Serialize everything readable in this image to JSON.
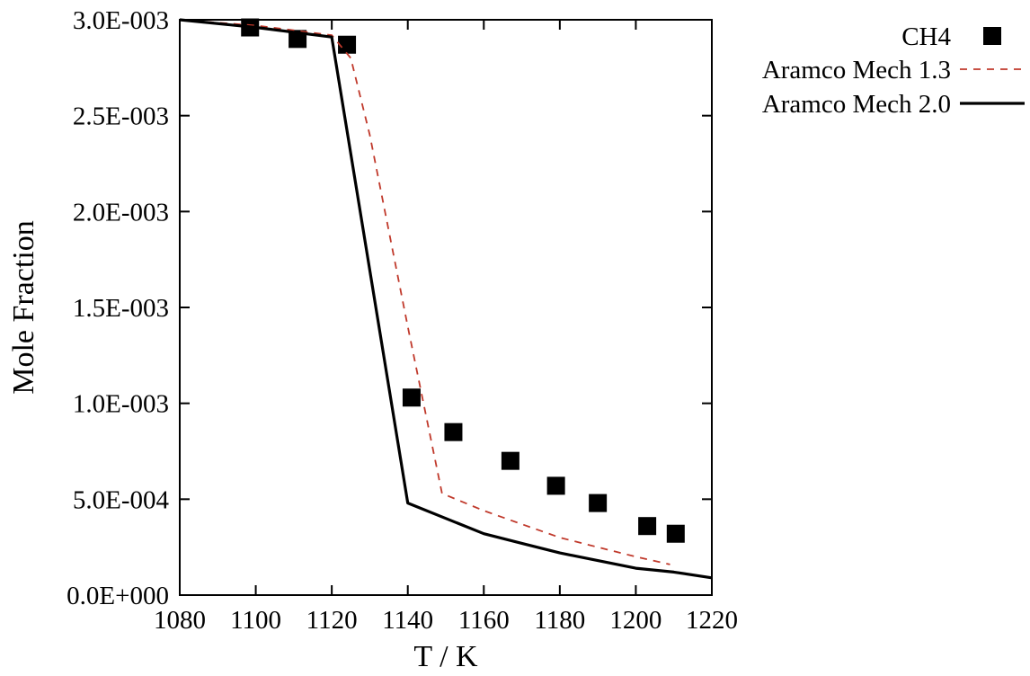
{
  "chart_data": {
    "type": "line",
    "title": "",
    "xlabel": "T / K",
    "ylabel": "Mole Fraction",
    "xlim": [
      1080,
      1220
    ],
    "ylim": [
      0,
      0.003
    ],
    "grid": false,
    "legend_position": "outside-top-right",
    "x_ticks": [
      1080,
      1100,
      1120,
      1140,
      1160,
      1180,
      1200,
      1220
    ],
    "x_tick_labels": [
      "1080",
      "1100",
      "1120",
      "1140",
      "1160",
      "1180",
      "1200",
      "1220"
    ],
    "y_ticks": [
      0,
      0.0005,
      0.001,
      0.0015,
      0.002,
      0.0025,
      0.003
    ],
    "y_tick_labels": [
      "0.0E+000",
      "5.0E-004",
      "1.0E-003",
      "1.5E-003",
      "2.0E-003",
      "2.5E-003",
      "3.0E-003"
    ],
    "series": [
      {
        "name": "CH4",
        "kind": "scatter",
        "marker": "square",
        "color": "#000000",
        "x": [
          1098.5,
          1111,
          1124,
          1141,
          1152,
          1167,
          1179,
          1190,
          1203,
          1210.5
        ],
        "y": [
          0.00296,
          0.0029,
          0.00287,
          0.00103,
          0.00085,
          0.0007,
          0.00057,
          0.00048,
          0.00036,
          0.00032
        ]
      },
      {
        "name": "Aramco Mech 1.3",
        "kind": "line",
        "dash": "dashed",
        "color": "#c0392b",
        "x": [
          1080,
          1100,
          1120,
          1125,
          1130,
          1140,
          1149,
          1160,
          1170,
          1180,
          1190,
          1200,
          1209
        ],
        "y": [
          0.003,
          0.00297,
          0.00292,
          0.0028,
          0.0024,
          0.0014,
          0.00053,
          0.00044,
          0.00037,
          0.0003,
          0.00025,
          0.0002,
          0.00016
        ]
      },
      {
        "name": "Aramco Mech 2.0",
        "kind": "line",
        "dash": "solid",
        "color": "#000000",
        "x": [
          1080,
          1100,
          1120,
          1140,
          1150,
          1160,
          1170,
          1180,
          1190,
          1200,
          1210,
          1220
        ],
        "y": [
          0.003,
          0.00296,
          0.00291,
          0.00048,
          0.0004,
          0.00032,
          0.00027,
          0.00022,
          0.00018,
          0.00014,
          0.00012,
          9e-05
        ]
      }
    ]
  }
}
